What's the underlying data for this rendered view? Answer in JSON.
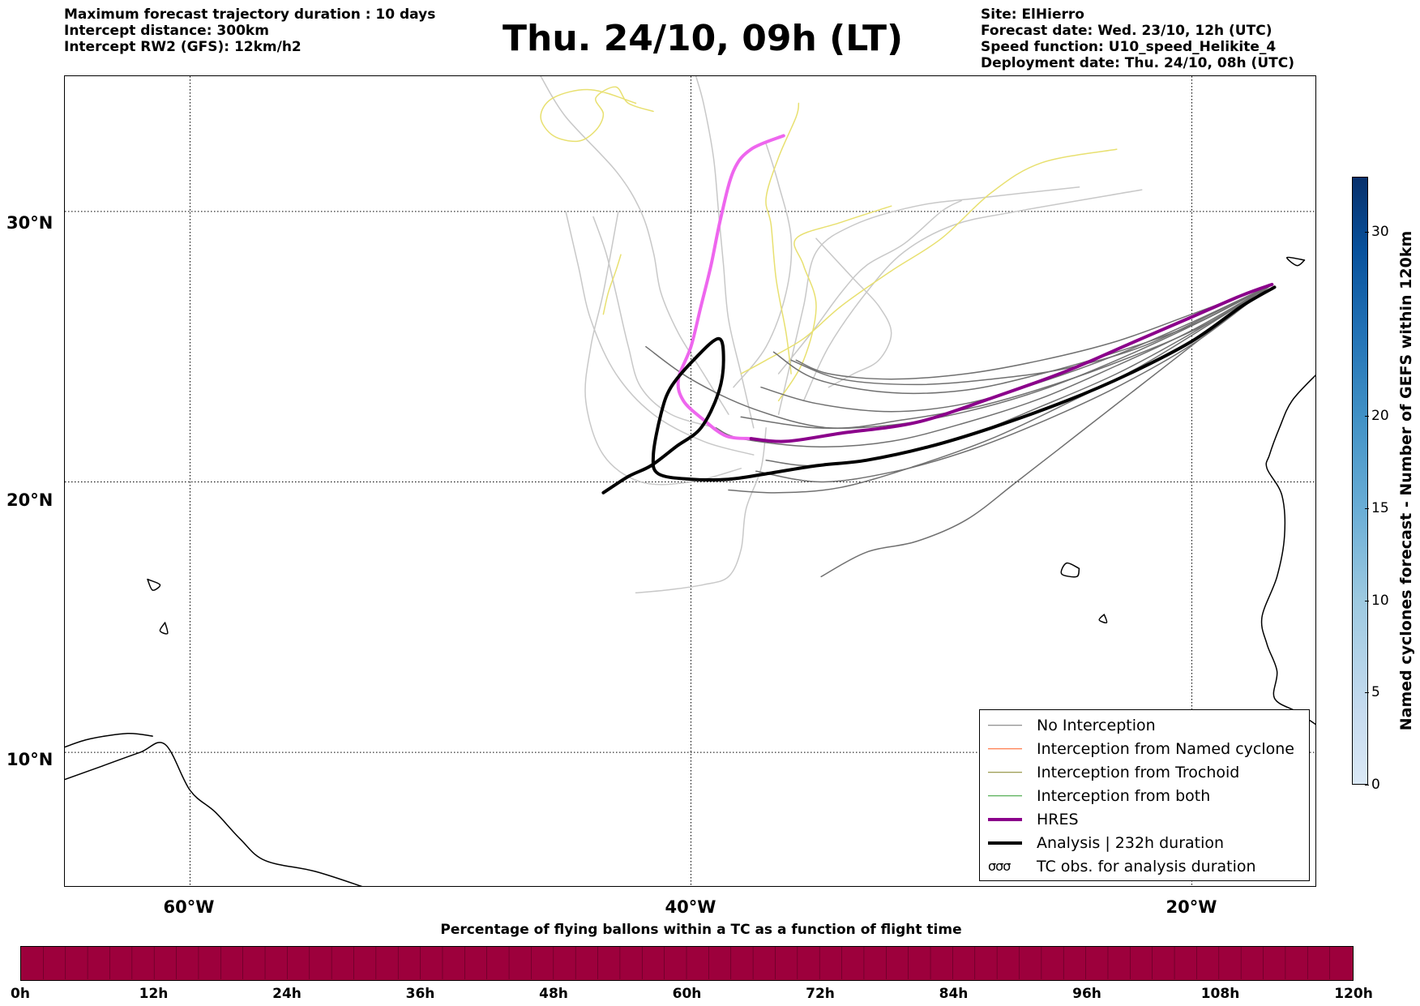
{
  "header": {
    "left_lines": [
      "Maximum forecast trajectory duration : 10 days",
      "Intercept distance: 300km",
      "Intercept RW2 (GFS):  12km/h2"
    ],
    "title": "Thu. 24/10, 09h (LT)",
    "right_lines": [
      "Site: ElHierro",
      "Forecast date: Wed. 23/10, 12h (UTC)",
      "Speed function: U10_speed_Helikite_4",
      "Deployment date: Thu. 24/10, 08h (UTC)"
    ]
  },
  "map": {
    "lon_range": [
      -65,
      -15
    ],
    "lat_range": [
      5,
      35
    ],
    "lat_labels": [
      {
        "value": 30,
        "label": "30°N"
      },
      {
        "value": 20,
        "label": "20°N"
      },
      {
        "value": 10,
        "label": "10°N"
      }
    ],
    "lon_labels": [
      {
        "value": -60,
        "label": "60°W"
      },
      {
        "value": -40,
        "label": "40°W"
      },
      {
        "value": -20,
        "label": "20°W"
      }
    ],
    "colors": {
      "no_interception": "#707070",
      "ensemble_light": "#c8c8c8",
      "yellow_tracks": "#e8e070",
      "named_cyclone": "#ff5a1f",
      "trochoid": "#808020",
      "both": "#2a9a2a",
      "hres": "#8b008b",
      "hres_early": "#ee66ee",
      "analysis": "#000000"
    },
    "hres_track": [
      [
        -16.8,
        27.3
      ],
      [
        -18.0,
        26.9
      ],
      [
        -20.0,
        26.1
      ],
      [
        -22.5,
        25.1
      ],
      [
        -25.0,
        24.1
      ],
      [
        -28.0,
        23.1
      ],
      [
        -31.0,
        22.2
      ],
      [
        -34.0,
        21.8
      ],
      [
        -36.2,
        21.5
      ],
      [
        -37.6,
        21.6
      ]
    ],
    "hres_early_track": [
      [
        -37.6,
        21.6
      ],
      [
        -38.6,
        21.7
      ],
      [
        -39.5,
        22.3
      ],
      [
        -40.3,
        23.0
      ],
      [
        -40.5,
        23.8
      ],
      [
        -40.0,
        25.0
      ],
      [
        -39.6,
        26.5
      ],
      [
        -39.2,
        28.0
      ],
      [
        -38.8,
        29.8
      ],
      [
        -38.3,
        31.5
      ],
      [
        -37.6,
        32.3
      ],
      [
        -36.3,
        32.8
      ]
    ],
    "analysis_track": [
      [
        -16.7,
        27.2
      ],
      [
        -18.0,
        26.5
      ],
      [
        -20.0,
        25.2
      ],
      [
        -22.5,
        24.0
      ],
      [
        -25.0,
        23.0
      ],
      [
        -28.0,
        22.0
      ],
      [
        -30.5,
        21.3
      ],
      [
        -33.0,
        20.8
      ],
      [
        -35.0,
        20.6
      ],
      [
        -37.0,
        20.3
      ],
      [
        -38.5,
        20.1
      ],
      [
        -40.0,
        20.1
      ],
      [
        -41.3,
        20.3
      ],
      [
        -41.5,
        21.0
      ],
      [
        -41.2,
        22.5
      ],
      [
        -40.8,
        23.5
      ],
      [
        -39.9,
        24.5
      ],
      [
        -38.9,
        25.3
      ],
      [
        -38.7,
        24.5
      ],
      [
        -38.9,
        23.3
      ],
      [
        -39.6,
        22.0
      ],
      [
        -40.6,
        21.3
      ],
      [
        -41.6,
        20.6
      ],
      [
        -42.5,
        20.2
      ],
      [
        -43.5,
        19.6
      ]
    ],
    "gray_tracks": [
      [
        [
          -16.8,
          27.3
        ],
        [
          -19.0,
          26.3
        ],
        [
          -22.0,
          25.0
        ],
        [
          -25.0,
          24.2
        ],
        [
          -28.0,
          23.8
        ],
        [
          -31.0,
          23.6
        ],
        [
          -34.0,
          23.8
        ],
        [
          -36.0,
          24.5
        ]
      ],
      [
        [
          -16.8,
          27.3
        ],
        [
          -19.5,
          26.0
        ],
        [
          -23.0,
          24.5
        ],
        [
          -26.0,
          23.4
        ],
        [
          -29.0,
          22.6
        ],
        [
          -32.0,
          22.1
        ],
        [
          -35.0,
          22.0
        ],
        [
          -38.0,
          22.4
        ]
      ],
      [
        [
          -16.8,
          27.3
        ],
        [
          -20.0,
          25.5
        ],
        [
          -23.0,
          24.0
        ],
        [
          -26.0,
          22.8
        ],
        [
          -29.0,
          21.7
        ],
        [
          -32.0,
          21.0
        ],
        [
          -35.0,
          20.6
        ],
        [
          -37.0,
          20.8
        ]
      ],
      [
        [
          -16.8,
          27.3
        ],
        [
          -19.0,
          26.0
        ],
        [
          -22.0,
          24.3
        ],
        [
          -25.0,
          22.9
        ],
        [
          -28.0,
          21.6
        ],
        [
          -31.0,
          20.6
        ],
        [
          -34.0,
          19.8
        ],
        [
          -36.5,
          19.6
        ],
        [
          -38.5,
          19.7
        ]
      ],
      [
        [
          -16.8,
          27.3
        ],
        [
          -19.5,
          25.4
        ],
        [
          -22.0,
          23.6
        ],
        [
          -24.5,
          21.8
        ],
        [
          -27.0,
          20.0
        ],
        [
          -29.0,
          18.6
        ],
        [
          -31.0,
          17.8
        ],
        [
          -33.0,
          17.4
        ],
        [
          -34.8,
          16.5
        ]
      ],
      [
        [
          -16.8,
          27.3
        ],
        [
          -20.0,
          25.8
        ],
        [
          -23.0,
          24.8
        ],
        [
          -26.0,
          24.0
        ],
        [
          -29.0,
          23.4
        ],
        [
          -32.0,
          23.3
        ],
        [
          -35.0,
          23.8
        ],
        [
          -36.7,
          24.8
        ]
      ],
      [
        [
          -16.8,
          27.3
        ],
        [
          -19.5,
          25.8
        ],
        [
          -22.5,
          24.6
        ],
        [
          -25.5,
          23.6
        ],
        [
          -28.5,
          22.8
        ],
        [
          -31.5,
          22.3
        ],
        [
          -34.5,
          22.0
        ],
        [
          -37.5,
          22.7
        ],
        [
          -40.0,
          23.8
        ],
        [
          -41.8,
          25.0
        ]
      ],
      [
        [
          -16.8,
          27.3
        ],
        [
          -20.0,
          25.6
        ],
        [
          -23.0,
          24.3
        ],
        [
          -26.0,
          23.1
        ],
        [
          -29.0,
          22.2
        ],
        [
          -32.0,
          21.5
        ],
        [
          -35.0,
          21.3
        ],
        [
          -38.0,
          21.6
        ],
        [
          -39.0,
          22.0
        ]
      ],
      [
        [
          -16.8,
          27.3
        ],
        [
          -20.0,
          26.2
        ],
        [
          -23.0,
          25.2
        ],
        [
          -26.0,
          24.5
        ],
        [
          -29.0,
          24.0
        ],
        [
          -32.0,
          23.8
        ],
        [
          -34.5,
          24.0
        ],
        [
          -35.8,
          24.5
        ]
      ],
      [
        [
          -16.8,
          27.3
        ],
        [
          -19.8,
          25.2
        ],
        [
          -22.8,
          23.6
        ],
        [
          -25.8,
          22.3
        ],
        [
          -28.8,
          21.2
        ],
        [
          -31.8,
          20.4
        ],
        [
          -34.8,
          20.0
        ],
        [
          -37.4,
          20.4
        ]
      ],
      [
        [
          -16.8,
          27.3
        ],
        [
          -20.0,
          25.9
        ],
        [
          -23.0,
          24.7
        ],
        [
          -26.0,
          23.7
        ],
        [
          -29.0,
          22.9
        ],
        [
          -32.0,
          22.6
        ],
        [
          -35.0,
          22.9
        ],
        [
          -37.2,
          23.5
        ]
      ]
    ],
    "light_tracks": [
      [
        [
          -38.5,
          22.5
        ],
        [
          -39.5,
          24.0
        ],
        [
          -40.5,
          25.5
        ],
        [
          -41.2,
          27.0
        ],
        [
          -41.5,
          28.5
        ],
        [
          -42.0,
          30.0
        ],
        [
          -43.0,
          31.5
        ],
        [
          -45.0,
          33.5
        ],
        [
          -46.0,
          35.0
        ]
      ],
      [
        [
          -37.5,
          22.0
        ],
        [
          -38.0,
          24.0
        ],
        [
          -38.5,
          26.0
        ],
        [
          -38.7,
          28.0
        ],
        [
          -38.9,
          30.0
        ],
        [
          -39.1,
          32.0
        ],
        [
          -39.5,
          34.0
        ],
        [
          -39.8,
          35.0
        ]
      ],
      [
        [
          -36.5,
          22.5
        ],
        [
          -36.0,
          24.5
        ],
        [
          -35.5,
          26.5
        ],
        [
          -35.0,
          28.5
        ],
        [
          -33.5,
          29.5
        ],
        [
          -31.0,
          30.2
        ],
        [
          -28.5,
          30.5
        ],
        [
          -24.5,
          30.9
        ]
      ],
      [
        [
          -35.5,
          23.0
        ],
        [
          -34.5,
          25.0
        ],
        [
          -33.0,
          27.0
        ],
        [
          -31.5,
          28.5
        ],
        [
          -29.5,
          29.5
        ],
        [
          -27.0,
          30.0
        ],
        [
          -22.0,
          30.8
        ]
      ],
      [
        [
          -37.5,
          21.0
        ],
        [
          -39.5,
          21.5
        ],
        [
          -41.5,
          22.5
        ],
        [
          -43.0,
          24.0
        ],
        [
          -44.0,
          26.0
        ],
        [
          -44.5,
          28.0
        ],
        [
          -45.0,
          30.0
        ]
      ],
      [
        [
          -38.0,
          20.5
        ],
        [
          -40.0,
          20.0
        ],
        [
          -42.0,
          20.0
        ],
        [
          -43.5,
          21.0
        ],
        [
          -44.2,
          23.0
        ],
        [
          -44.0,
          25.0
        ],
        [
          -43.5,
          27.0
        ],
        [
          -42.9,
          30.0
        ]
      ],
      [
        [
          -36.5,
          24.0
        ],
        [
          -35.2,
          25.5
        ],
        [
          -34.0,
          27.0
        ],
        [
          -33.0,
          28.0
        ],
        [
          -31.5,
          28.8
        ],
        [
          -30.0,
          30.0
        ],
        [
          -29.2,
          30.4
        ]
      ],
      [
        [
          -37.0,
          22.0
        ],
        [
          -37.2,
          20.5
        ],
        [
          -37.8,
          19.0
        ],
        [
          -38.0,
          17.5
        ],
        [
          -38.5,
          16.5
        ],
        [
          -39.5,
          16.2
        ],
        [
          -41.0,
          16.0
        ],
        [
          -42.2,
          15.9
        ]
      ],
      [
        [
          -34.5,
          23.5
        ],
        [
          -33.5,
          24.0
        ],
        [
          -32.5,
          24.5
        ],
        [
          -32.0,
          25.5
        ],
        [
          -32.5,
          26.5
        ],
        [
          -33.5,
          27.5
        ],
        [
          -34.5,
          28.5
        ],
        [
          -35.0,
          29.0
        ]
      ],
      [
        [
          -38.3,
          23.5
        ],
        [
          -37.0,
          25.0
        ],
        [
          -36.2,
          27.0
        ],
        [
          -36.0,
          29.0
        ],
        [
          -36.5,
          31.0
        ],
        [
          -37.0,
          32.5
        ]
      ],
      [
        [
          -39.0,
          22.0
        ],
        [
          -40.8,
          22.5
        ],
        [
          -42.0,
          23.5
        ],
        [
          -42.5,
          25.0
        ],
        [
          -43.0,
          27.0
        ],
        [
          -43.4,
          28.5
        ],
        [
          -43.9,
          29.8
        ]
      ]
    ],
    "yellow_tracks": [
      [
        [
          -42.2,
          34.0
        ],
        [
          -44.0,
          34.5
        ],
        [
          -45.5,
          34.2
        ],
        [
          -46.0,
          33.5
        ],
        [
          -45.5,
          32.8
        ],
        [
          -44.5,
          32.6
        ],
        [
          -43.8,
          33.0
        ],
        [
          -43.5,
          33.6
        ],
        [
          -43.8,
          34.2
        ],
        [
          -43.0,
          34.6
        ],
        [
          -42.5,
          34.0
        ],
        [
          -41.5,
          33.7
        ]
      ],
      [
        [
          -36.0,
          24.0
        ],
        [
          -36.2,
          25.5
        ],
        [
          -36.6,
          27.5
        ],
        [
          -36.8,
          29.5
        ],
        [
          -37.0,
          30.5
        ],
        [
          -36.5,
          32.0
        ],
        [
          -35.8,
          33.5
        ],
        [
          -35.7,
          34.0
        ]
      ],
      [
        [
          -38.0,
          24.0
        ],
        [
          -37.0,
          24.5
        ],
        [
          -35.5,
          25.3
        ],
        [
          -34.0,
          26.5
        ],
        [
          -32.0,
          27.8
        ],
        [
          -30.0,
          29.0
        ],
        [
          -28.0,
          30.7
        ],
        [
          -26.0,
          31.8
        ],
        [
          -23.0,
          32.3
        ]
      ],
      [
        [
          -43.5,
          26.2
        ],
        [
          -43.3,
          27.0
        ],
        [
          -43.0,
          27.8
        ],
        [
          -42.8,
          28.4
        ]
      ],
      [
        [
          -36.5,
          23.0
        ],
        [
          -35.5,
          24.5
        ],
        [
          -35.0,
          26.5
        ],
        [
          -35.5,
          28.0
        ],
        [
          -35.8,
          29.0
        ],
        [
          -34.0,
          29.6
        ],
        [
          -32.0,
          30.2
        ]
      ]
    ],
    "land_outlines": [
      [
        [
          -15.0,
          24.0
        ],
        [
          -16.0,
          23.0
        ],
        [
          -16.5,
          22.0
        ],
        [
          -16.9,
          21.0
        ],
        [
          -17.0,
          20.5
        ],
        [
          -16.4,
          19.5
        ],
        [
          -16.3,
          18.0
        ],
        [
          -16.6,
          16.5
        ],
        [
          -17.2,
          15.0
        ],
        [
          -17.0,
          14.0
        ],
        [
          -16.6,
          13.0
        ],
        [
          -16.7,
          12.0
        ],
        [
          -15.8,
          11.5
        ],
        [
          -15.0,
          11.0
        ]
      ],
      [
        [
          -65.0,
          9.0
        ],
        [
          -63.5,
          9.5
        ],
        [
          -62.0,
          10.0
        ],
        [
          -61.0,
          10.3
        ],
        [
          -60.0,
          8.6
        ],
        [
          -59.0,
          7.8
        ],
        [
          -58.0,
          6.8
        ],
        [
          -57.0,
          6.0
        ],
        [
          -55.0,
          5.6
        ],
        [
          -53.0,
          5.0
        ]
      ],
      [
        [
          -65.0,
          10.2
        ],
        [
          -64.0,
          10.5
        ],
        [
          -62.5,
          10.7
        ],
        [
          -61.5,
          10.6
        ]
      ],
      [
        [
          -15.5,
          28.2
        ],
        [
          -15.8,
          28.0
        ],
        [
          -16.2,
          28.3
        ],
        [
          -15.5,
          28.2
        ]
      ],
      [
        [
          -13.8,
          28.6
        ],
        [
          -14.2,
          28.2
        ],
        [
          -13.8,
          28.0
        ],
        [
          -13.5,
          28.4
        ],
        [
          -13.8,
          28.6
        ]
      ],
      [
        [
          -24.5,
          16.8
        ],
        [
          -25.0,
          17.0
        ],
        [
          -25.2,
          16.6
        ],
        [
          -24.6,
          16.5
        ],
        [
          -24.5,
          16.8
        ]
      ],
      [
        [
          -23.5,
          15.1
        ],
        [
          -23.7,
          14.9
        ],
        [
          -23.4,
          14.8
        ],
        [
          -23.5,
          15.1
        ]
      ],
      [
        [
          -61.0,
          14.8
        ],
        [
          -61.2,
          14.5
        ],
        [
          -60.9,
          14.4
        ],
        [
          -61.0,
          14.8
        ]
      ],
      [
        [
          -61.7,
          16.4
        ],
        [
          -61.5,
          16.0
        ],
        [
          -61.2,
          16.2
        ],
        [
          -61.7,
          16.4
        ]
      ]
    ]
  },
  "legend": {
    "items": [
      {
        "label": "No Interception",
        "color": "#707070",
        "width": 1.5
      },
      {
        "label": "Interception from Named cyclone",
        "color": "#ff5a1f",
        "width": 1.5
      },
      {
        "label": "Interception from Trochoid",
        "color": "#808020",
        "width": 1.5
      },
      {
        "label": "Interception from both",
        "color": "#2a9a2a",
        "width": 1.5
      },
      {
        "label": "HRES",
        "color": "#8b008b",
        "width": 4
      },
      {
        "label": "Analysis | 232h duration",
        "color": "#000000",
        "width": 4
      }
    ],
    "tc_obs_symbol": "σσσ",
    "tc_obs_label": "TC obs. for analysis duration"
  },
  "colorbar": {
    "label": "Named cyclones forecast - Number of GEFS within 120km",
    "min": 0,
    "max": 33,
    "ticks": [
      0,
      5,
      10,
      15,
      20,
      30
    ]
  },
  "flight_bar": {
    "title": "Percentage of flying ballons within a TC as a function of flight time",
    "color": "#9d003c",
    "ticks": [
      "0h",
      "12h",
      "24h",
      "36h",
      "48h",
      "60h",
      "72h",
      "84h",
      "96h",
      "108h",
      "120h"
    ]
  }
}
